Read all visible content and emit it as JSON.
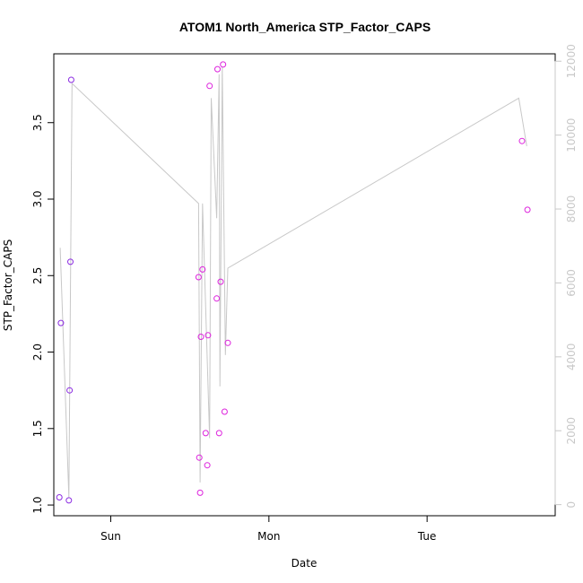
{
  "chart_data": {
    "type": "scatter",
    "title": "ATOM1 North_America STP_Factor_CAPS",
    "xlabel": "Date",
    "ylabel": "STP_Factor_CAPS",
    "xlim": [
      -0.36,
      2.81
    ],
    "ylim": [
      0.93,
      3.95
    ],
    "x_ticks": [
      {
        "value": 0,
        "label": "Sun"
      },
      {
        "value": 1,
        "label": "Mon"
      },
      {
        "value": 2,
        "label": "Tue"
      }
    ],
    "y_ticks": [
      1.0,
      1.5,
      2.0,
      2.5,
      3.0,
      3.5
    ],
    "y2lim": [
      -300,
      12200
    ],
    "y2_ticks": [
      0,
      2000,
      4000,
      6000,
      8000,
      10000,
      12000
    ],
    "grid": false,
    "series": [
      {
        "kind": "points",
        "color": "#8B2BE2",
        "points": [
          {
            "x": -0.325,
            "y": 1.05
          },
          {
            "x": -0.315,
            "y": 2.19
          },
          {
            "x": -0.265,
            "y": 1.03
          },
          {
            "x": -0.26,
            "y": 1.75
          },
          {
            "x": -0.255,
            "y": 2.59
          },
          {
            "x": -0.25,
            "y": 3.78
          }
        ]
      },
      {
        "kind": "points",
        "color": "#DD22DD",
        "points": [
          {
            "x": 0.555,
            "y": 2.49
          },
          {
            "x": 0.56,
            "y": 1.31
          },
          {
            "x": 0.565,
            "y": 1.08
          },
          {
            "x": 0.57,
            "y": 2.1
          },
          {
            "x": 0.58,
            "y": 2.54
          },
          {
            "x": 0.6,
            "y": 1.47
          },
          {
            "x": 0.61,
            "y": 1.26
          },
          {
            "x": 0.615,
            "y": 2.11
          },
          {
            "x": 0.625,
            "y": 3.74
          },
          {
            "x": 0.67,
            "y": 2.35
          },
          {
            "x": 0.675,
            "y": 3.85
          },
          {
            "x": 0.685,
            "y": 1.47
          },
          {
            "x": 0.695,
            "y": 2.46
          },
          {
            "x": 0.71,
            "y": 3.88
          },
          {
            "x": 0.72,
            "y": 1.61
          },
          {
            "x": 0.74,
            "y": 2.06
          },
          {
            "x": 2.6,
            "y": 3.38
          },
          {
            "x": 2.635,
            "y": 2.93
          }
        ]
      },
      {
        "kind": "line",
        "axis": "right",
        "color": "#c8c8c8",
        "points": [
          {
            "x": -0.32,
            "y": 6950
          },
          {
            "x": -0.265,
            "y": 200
          },
          {
            "x": -0.245,
            "y": 11400
          },
          {
            "x": 0.555,
            "y": 8150
          },
          {
            "x": 0.565,
            "y": 600
          },
          {
            "x": 0.58,
            "y": 8150
          },
          {
            "x": 0.625,
            "y": 1800
          },
          {
            "x": 0.635,
            "y": 11000
          },
          {
            "x": 0.67,
            "y": 7750
          },
          {
            "x": 0.685,
            "y": 11650
          },
          {
            "x": 0.69,
            "y": 3200
          },
          {
            "x": 0.705,
            "y": 11850
          },
          {
            "x": 0.725,
            "y": 4050
          },
          {
            "x": 0.74,
            "y": 6400
          },
          {
            "x": 2.58,
            "y": 11000
          },
          {
            "x": 2.63,
            "y": 9700
          }
        ]
      }
    ]
  }
}
